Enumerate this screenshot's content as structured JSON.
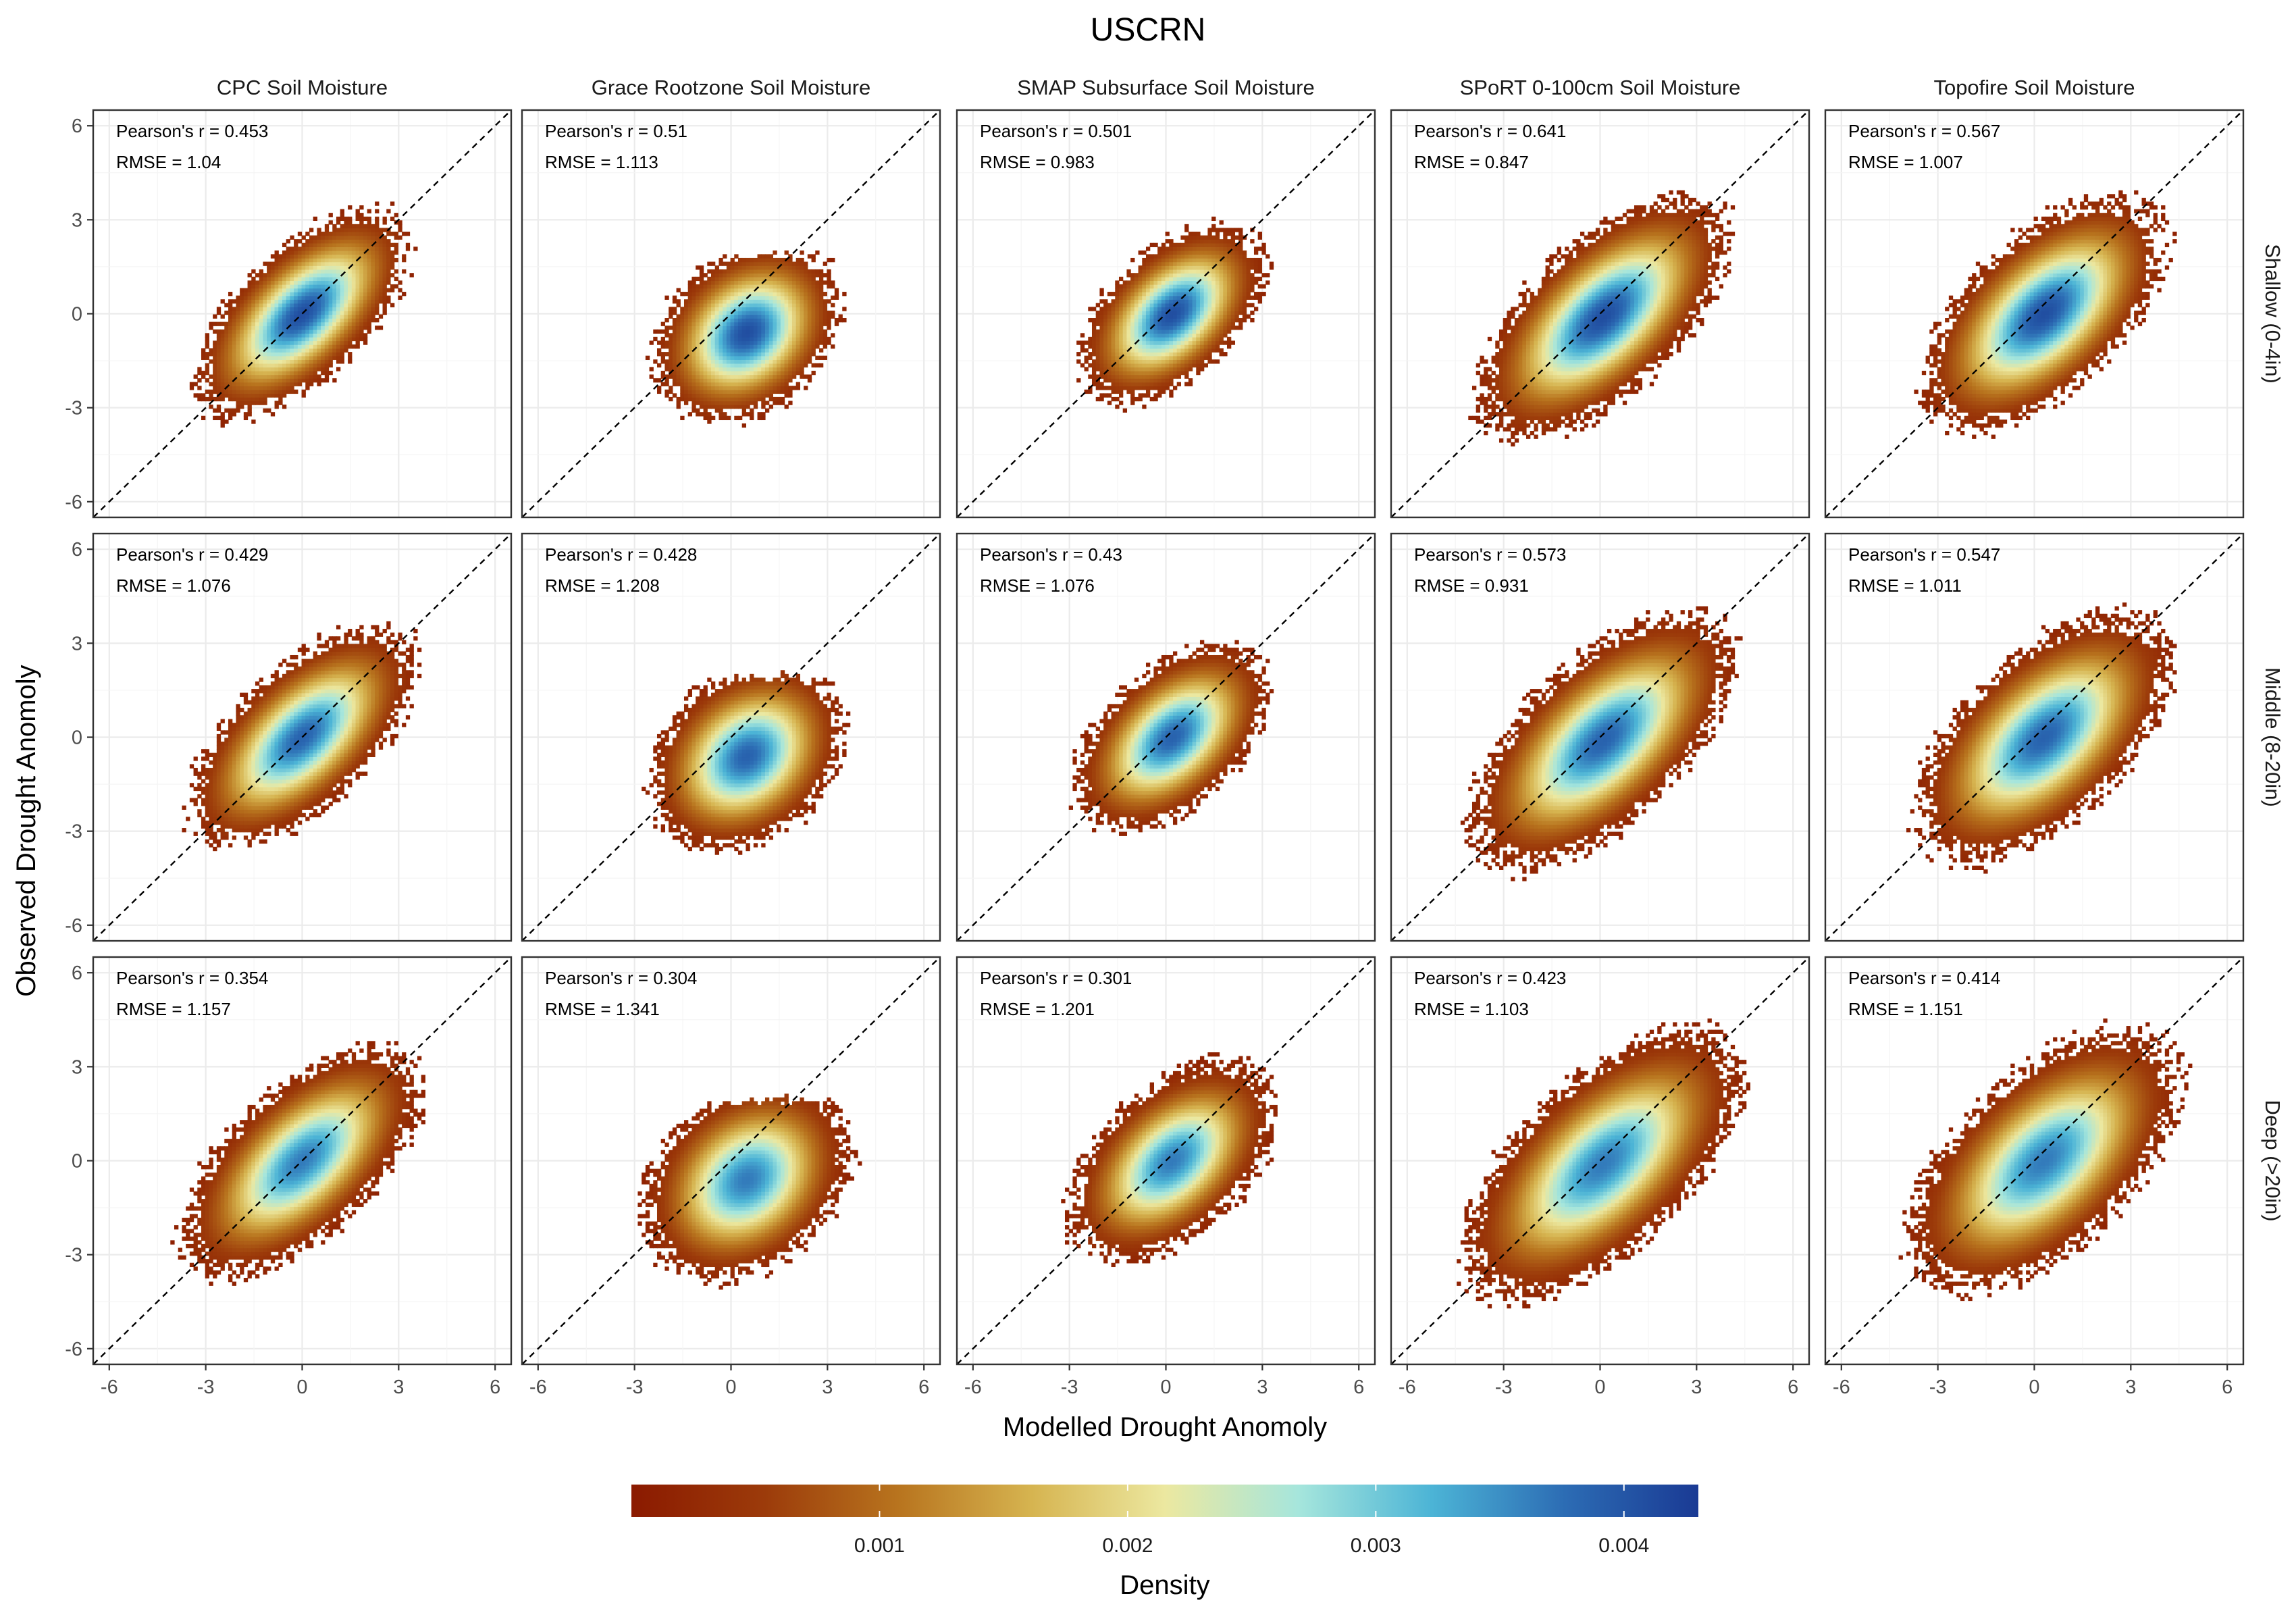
{
  "chart_data": {
    "type": "heatmap",
    "title": "USCRN",
    "xlabel": "Modelled Drought Anomoly",
    "ylabel": "Observed Drought Anomoly",
    "xlim": [
      -6.5,
      6.5
    ],
    "ylim": [
      -6.5,
      6.5
    ],
    "x_ticks": [
      "-6",
      "-3",
      "0",
      "3",
      "6"
    ],
    "y_ticks": [
      "-6",
      "-3",
      "0",
      "3",
      "6"
    ],
    "grid": true,
    "reference_line": "y = x (dashed)",
    "columns": [
      "CPC Soil Moisture",
      "Grace Rootzone Soil Moisture",
      "SMAP Subsurface Soil Moisture",
      "SPoRT 0-100cm Soil Moisture",
      "Topofire Soil Moisture"
    ],
    "rows": [
      "Shallow (0-4in)",
      "Middle (8-20in)",
      "Deep (>20in)"
    ],
    "stat_labels": {
      "r": "Pearson's r = ",
      "rmse": "RMSE = "
    },
    "panels": [
      {
        "row": 0,
        "col": 0,
        "r": "0.453",
        "rmse": "1.04"
      },
      {
        "row": 0,
        "col": 1,
        "r": "0.51",
        "rmse": "1.113"
      },
      {
        "row": 0,
        "col": 2,
        "r": "0.501",
        "rmse": "0.983"
      },
      {
        "row": 0,
        "col": 3,
        "r": "0.641",
        "rmse": "0.847"
      },
      {
        "row": 0,
        "col": 4,
        "r": "0.567",
        "rmse": "1.007"
      },
      {
        "row": 1,
        "col": 0,
        "r": "0.429",
        "rmse": "1.076"
      },
      {
        "row": 1,
        "col": 1,
        "r": "0.428",
        "rmse": "1.208"
      },
      {
        "row": 1,
        "col": 2,
        "r": "0.43",
        "rmse": "1.076"
      },
      {
        "row": 1,
        "col": 3,
        "r": "0.573",
        "rmse": "0.931"
      },
      {
        "row": 1,
        "col": 4,
        "r": "0.547",
        "rmse": "1.011"
      },
      {
        "row": 2,
        "col": 0,
        "r": "0.354",
        "rmse": "1.157"
      },
      {
        "row": 2,
        "col": 1,
        "r": "0.304",
        "rmse": "1.341"
      },
      {
        "row": 2,
        "col": 2,
        "r": "0.301",
        "rmse": "1.201"
      },
      {
        "row": 2,
        "col": 3,
        "r": "0.423",
        "rmse": "1.103"
      },
      {
        "row": 2,
        "col": 4,
        "r": "0.414",
        "rmse": "1.151"
      }
    ],
    "colorbar": {
      "title": "Density",
      "ticks": [
        "0.001",
        "0.002",
        "0.003",
        "0.004"
      ],
      "tick_values": [
        0.001,
        0.002,
        0.003,
        0.004
      ],
      "range": [
        0,
        0.0043
      ],
      "colors": [
        "#8b1a00",
        "#9c3b0a",
        "#b8741e",
        "#d6b450",
        "#ece8a0",
        "#a6e6dc",
        "#4cb4d6",
        "#2c6cb4",
        "#1a3a94"
      ]
    }
  }
}
